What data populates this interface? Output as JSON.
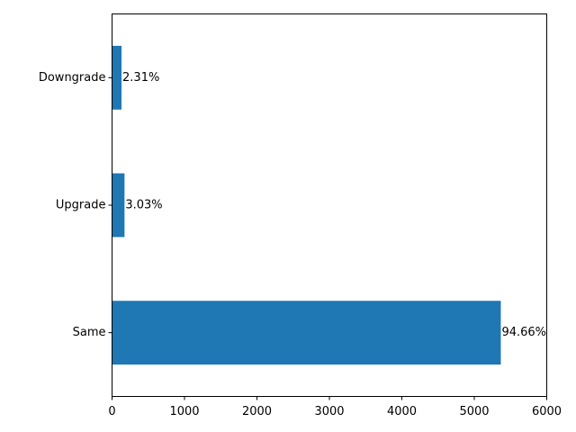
{
  "chart_data": {
    "type": "barh",
    "categories": [
      "Same",
      "Upgrade",
      "Downgrade"
    ],
    "values": [
      5366,
      172,
      131
    ],
    "value_labels": [
      "94.66%",
      "3.03%",
      "2.31%"
    ],
    "color": "#1f77b4",
    "xlim": [
      0,
      6000
    ],
    "xticks": [
      0,
      1000,
      2000,
      3000,
      4000,
      5000,
      6000
    ],
    "grid": false
  }
}
